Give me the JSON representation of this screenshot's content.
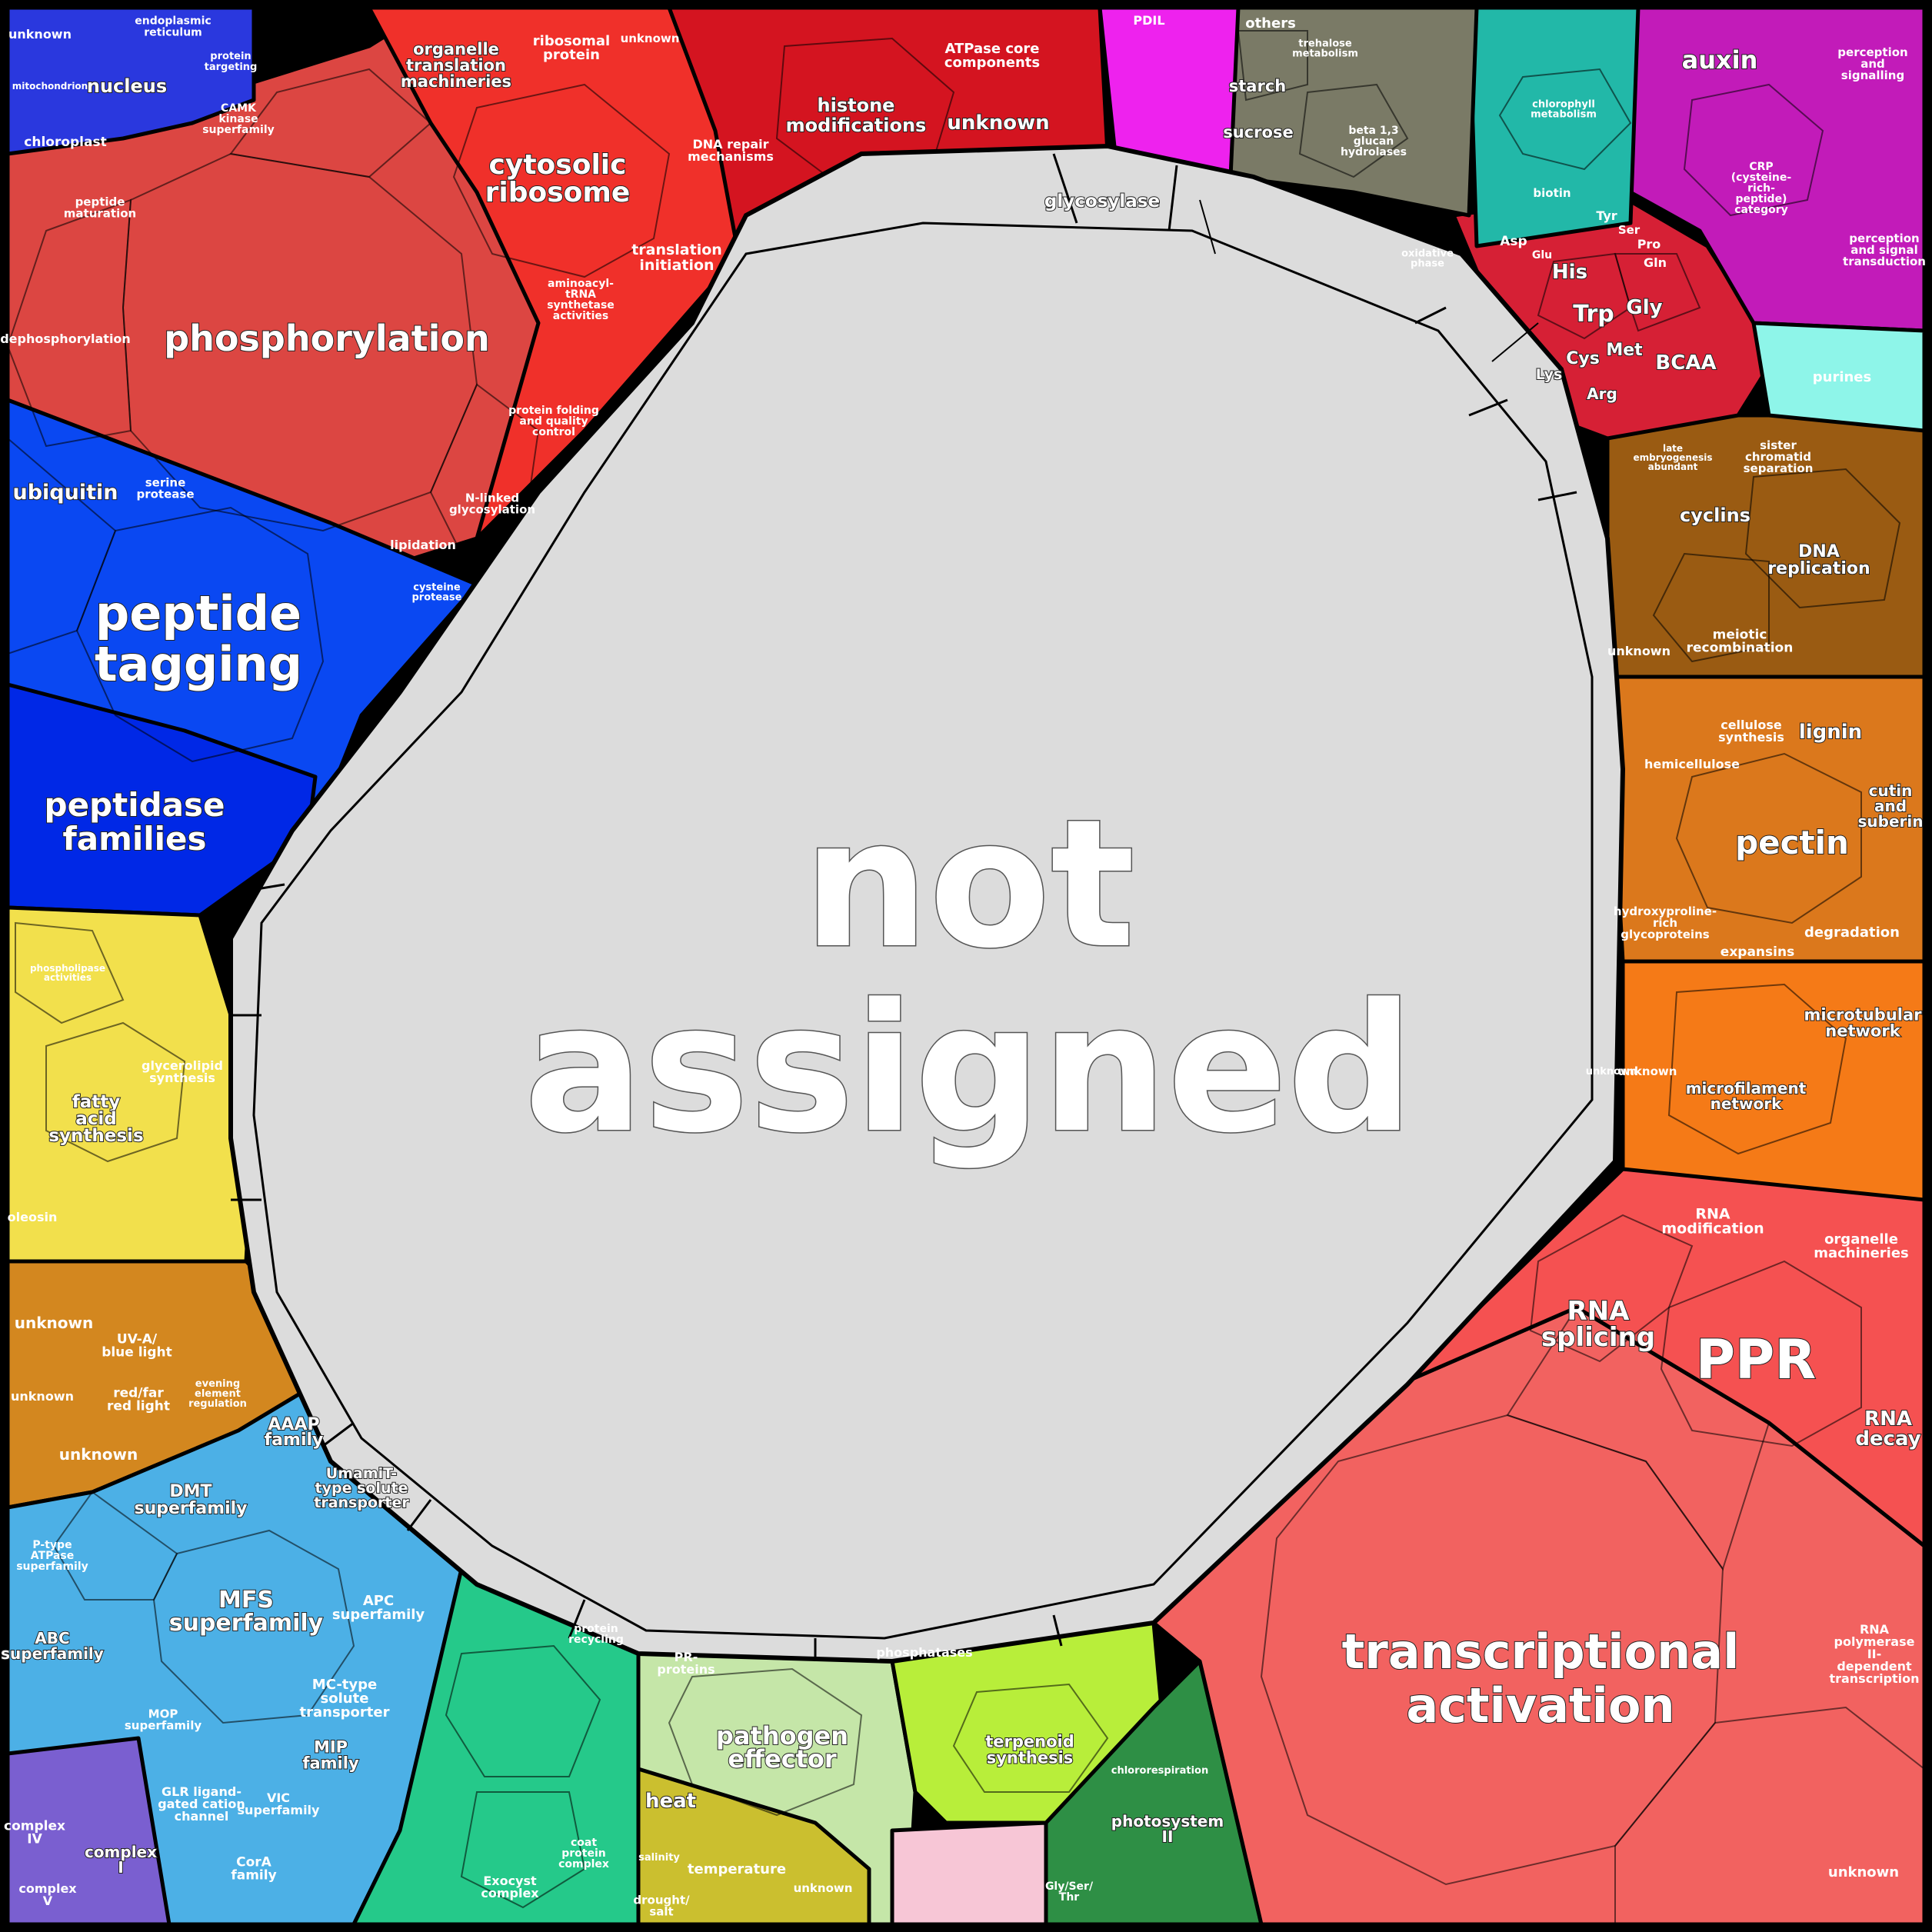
{
  "title_lines": [
    "not",
    "assigned"
  ],
  "regions": [
    {
      "id": "protein",
      "color": "#e5433f"
    },
    {
      "id": "ribosome",
      "color": "#f0302a"
    },
    {
      "id": "chromatin",
      "color": "#d41420"
    },
    {
      "id": "peptide-tagging",
      "color": "#0a4cf5"
    },
    {
      "id": "peptidase",
      "color": "#0028e8"
    },
    {
      "id": "lipid",
      "color": "#f7e14d"
    },
    {
      "id": "photo-signal",
      "color": "#d98c18"
    },
    {
      "id": "transporters",
      "color": "#4eaee8"
    },
    {
      "id": "vesicle",
      "color": "#25c98a"
    },
    {
      "id": "stress",
      "color": "#c5e6a8"
    },
    {
      "id": "terpenoid",
      "color": "#b8ee3a"
    },
    {
      "id": "photosystem",
      "color": "#2e8f45"
    },
    {
      "id": "rna",
      "color": "#f55151"
    },
    {
      "id": "transcription",
      "color": "#f2615f"
    },
    {
      "id": "cytoskeleton",
      "color": "#f57a17"
    },
    {
      "id": "cellwall",
      "color": "#e0791b"
    },
    {
      "id": "cellcycle",
      "color": "#9a5b12"
    },
    {
      "id": "amino",
      "color": "#d62035"
    },
    {
      "id": "auxin",
      "color": "#c422c6"
    },
    {
      "id": "carb",
      "color": "#7a7a66"
    },
    {
      "id": "chlorophyll",
      "color": "#22b8a8"
    },
    {
      "id": "redox",
      "color": "#ee22ee"
    }
  ],
  "labels": {
    "phosphorylation": "phosphorylation",
    "dephosphorylation": "dephosphorylation",
    "cytosolic_ribosome": [
      "cytosolic",
      "ribosome"
    ],
    "histone_modifications": [
      "histone",
      "modifications"
    ],
    "unknown": "unknown",
    "peptide_tagging": [
      "peptide",
      "tagging"
    ],
    "ubiquitin": "ubiquitin",
    "peptidase_families": [
      "peptidase",
      "families"
    ],
    "nucleus": "nucleus",
    "chloroplast": "chloroplast",
    "organelle_translation": [
      "organelle",
      "translation",
      "machineries"
    ],
    "ribosomal_protein": [
      "ribosomal",
      "protein"
    ],
    "translation_initiation": [
      "translation",
      "initiation"
    ],
    "dna_repair": [
      "DNA repair",
      "mechanisms"
    ],
    "atpase_core": [
      "ATPase core",
      "components"
    ],
    "glycosylase": "glycosylase",
    "fatty_acid_synthesis": [
      "fatty",
      "acid",
      "synthesis"
    ],
    "glycerolipid_synthesis": [
      "glycerolipid",
      "synthesis"
    ],
    "oleosin": "oleosin",
    "phospholipase": [
      "phospholipase",
      "activities"
    ],
    "uva_blue": [
      "UV-A/",
      "blue light"
    ],
    "red_far_red": [
      "red/far",
      "red light"
    ],
    "evening_element": [
      "evening",
      "element",
      "regulation"
    ],
    "dmt_superfamily": [
      "DMT",
      "superfamily"
    ],
    "mfs_superfamily": [
      "MFS",
      "superfamily"
    ],
    "aaap_family": [
      "AAAP",
      "family"
    ],
    "umamit": [
      "UmamiT-",
      "type solute",
      "transporter"
    ],
    "apc_superfamily": [
      "APC",
      "superfamily"
    ],
    "mc_type": [
      "MC-type",
      "solute",
      "transporter"
    ],
    "mip_family": [
      "MIP",
      "family"
    ],
    "vic_superfamily": [
      "VIC",
      "superfamily"
    ],
    "glr_channel": [
      "GLR ligand-",
      "gated cation",
      "channel"
    ],
    "abc_superfamily": [
      "ABC",
      "superfamily"
    ],
    "ptype_atpase": [
      "P-type",
      "ATPase",
      "superfamily"
    ],
    "mop_superfamily": [
      "MOP",
      "superfamily"
    ],
    "cora_family": [
      "CorA",
      "family"
    ],
    "complex_i": [
      "complex",
      "I"
    ],
    "complex_iv": [
      "complex",
      "IV"
    ],
    "complex_v": [
      "complex",
      "V"
    ],
    "pathogen_effector": [
      "pathogen",
      "effector"
    ],
    "heat": "heat",
    "temperature": "temperature",
    "drought_salt": [
      "drought/",
      "salt"
    ],
    "salinity": "salinity",
    "pr_proteins": [
      "PR-",
      "proteins"
    ],
    "terpenoid_synthesis": [
      "terpenoid",
      "synthesis"
    ],
    "photosystem_ii": [
      "photosystem",
      "II"
    ],
    "chlororespiration": "chlororespiration",
    "gly_ser_thr": [
      "Gly/Ser/",
      "Thr"
    ],
    "transcriptional_activation": [
      "transcriptional",
      "activation"
    ],
    "rna_splicing": [
      "RNA",
      "splicing"
    ],
    "ppr": "PPR",
    "rna_modification": [
      "RNA",
      "modification"
    ],
    "organelle_machineries": [
      "organelle",
      "machineries"
    ],
    "rna_decay": [
      "RNA",
      "decay"
    ],
    "rna_polymerase": [
      "RNA",
      "polymerase",
      "II-",
      "dependent",
      "transcription"
    ],
    "microtubular_network": [
      "microtubular",
      "network"
    ],
    "microfilament_network": [
      "microfilament",
      "network"
    ],
    "pectin": "pectin",
    "lignin": "lignin",
    "hemicellulose": "hemicellulose",
    "cellulose_synthesis": [
      "cellulose",
      "synthesis"
    ],
    "cutin_suberin": [
      "cutin",
      "and",
      "suberin"
    ],
    "expansins": "expansins",
    "degradation": "degradation",
    "hydroxyproline": [
      "hydroxyproline-",
      "rich",
      "glycoproteins"
    ],
    "cyclins": "cyclins",
    "dna_replication": [
      "DNA",
      "replication"
    ],
    "meiotic_recombination": [
      "meiotic",
      "recombination"
    ],
    "sister_chromatid": [
      "sister",
      "chromatid",
      "separation"
    ],
    "late_embryogenesis": [
      "late",
      "embryogenesis",
      "abundant"
    ],
    "his": "His",
    "trp": "Trp",
    "gly": "Gly",
    "met": "Met",
    "cys": "Cys",
    "arg": "Arg",
    "lys": "Lys",
    "bcaa": "BCAA",
    "asp": "Asp",
    "glu": "Glu",
    "pro": "Pro",
    "gln": "Gln",
    "ser": "Ser",
    "tyr": "Tyr",
    "auxin": "auxin",
    "perception_signalling": [
      "perception",
      "and",
      "signalling"
    ],
    "crp": [
      "CRP",
      "(cysteine-",
      "rich-",
      "peptide)",
      "category"
    ],
    "perception_transduction": [
      "perception",
      "and signal",
      "transduction"
    ],
    "starch": "starch",
    "sucrose": "sucrose",
    "beta_glucan": [
      "beta 1,3",
      "glucan",
      "hydrolases"
    ],
    "others": "others",
    "trehalose": [
      "trehalose",
      "metabolism"
    ],
    "chlorophyll_metabolism": [
      "chlorophyll",
      "metabolism"
    ],
    "biotin": "biotin",
    "oxidative_phase": [
      "oxidative",
      "phase"
    ],
    "purines": "purines",
    "pdil": "PDIL",
    "serine_protease": [
      "serine",
      "protease"
    ],
    "cysteine_protease": [
      "cysteine",
      "protease"
    ],
    "camk": [
      "CAMK",
      "kinase",
      "superfamily"
    ],
    "lipidation": "lipidation",
    "nlinked": [
      "N-linked",
      "glycosylation"
    ],
    "protein_folding": [
      "protein folding",
      "and quality",
      "control"
    ],
    "aminoacyl": [
      "aminoacyl-",
      "tRNA",
      "synthetase",
      "activities"
    ],
    "peptide_maturation": [
      "peptide",
      "maturation"
    ],
    "protein_targeting": [
      "protein",
      "targeting"
    ],
    "endoplasmic": [
      "endoplasmic",
      "reticulum"
    ],
    "mitochondrion": "mitochondrion",
    "protein_recycling": [
      "protein",
      "recycling"
    ],
    "coat_protein": [
      "coat",
      "protein",
      "complex"
    ],
    "exocyst": [
      "Exocyst",
      "complex"
    ],
    "phosphatases": "phosphatases",
    "not_assigned": [
      "not",
      "assigned"
    ]
  }
}
